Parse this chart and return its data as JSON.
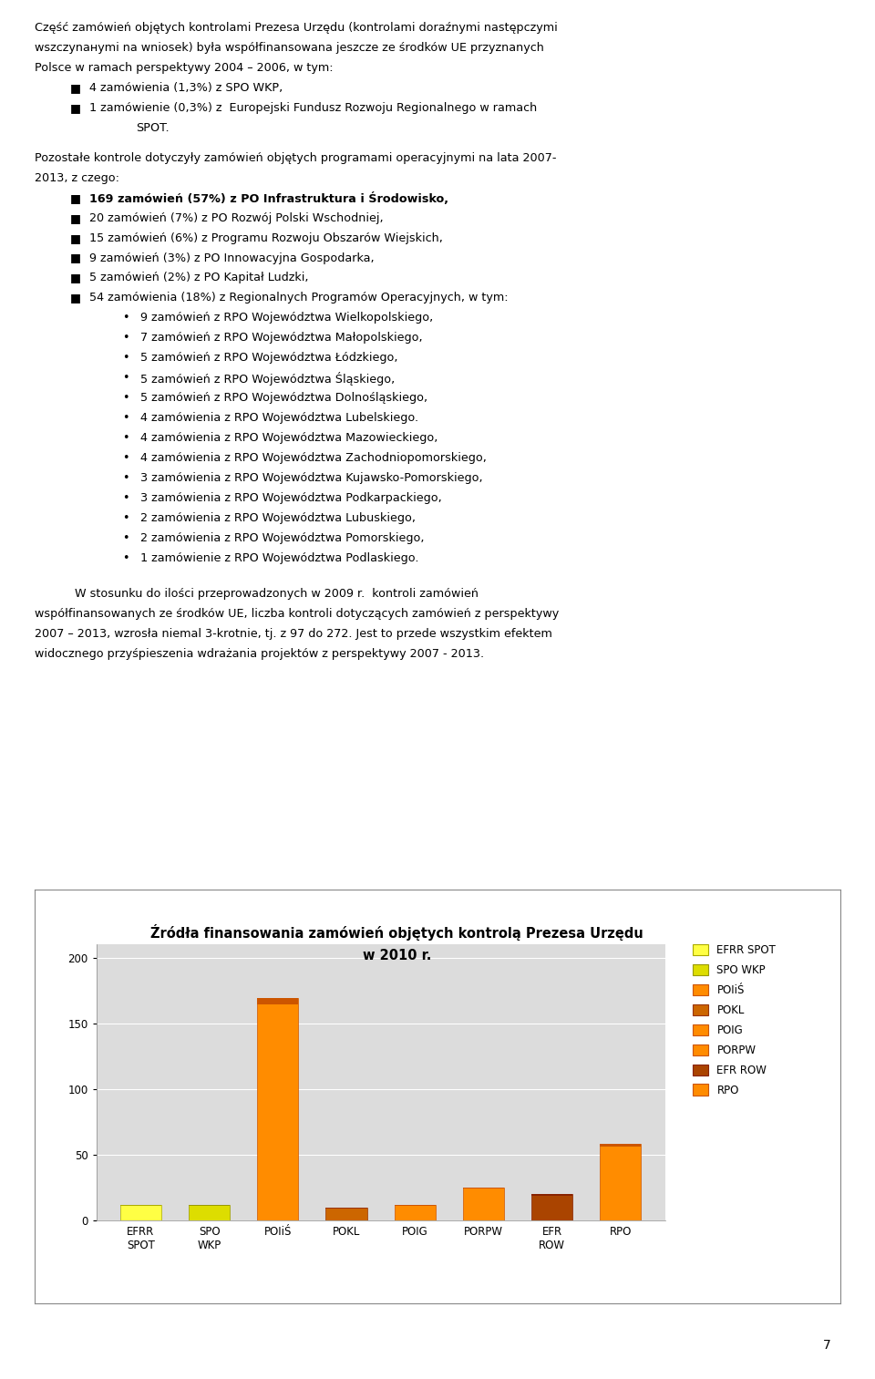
{
  "title_line1": "Źródła finansowania zamówień objętych kontrolą Prezesa Urzędu",
  "title_line2": "w 2010 r.",
  "categories": [
    "EFRR\nSPOT",
    "SPO\nWKP",
    "POIiŚ",
    "POKL",
    "POIG",
    "PORPW",
    "EFR\nROW",
    "RPO"
  ],
  "values": [
    12,
    12,
    169,
    10,
    12,
    25,
    20,
    58
  ],
  "bar_colors": [
    "#FFFF44",
    "#DDDD00",
    "#FF8C00",
    "#CC6600",
    "#FF8C00",
    "#FF8C00",
    "#AA4400",
    "#FF8C00"
  ],
  "bar_top_colors": [
    "#AAAA00",
    "#999900",
    "#CC5500",
    "#993300",
    "#CC5500",
    "#CC5500",
    "#882200",
    "#CC5500"
  ],
  "legend_labels": [
    "EFRR SPOT",
    "SPO WKP",
    "POIiŚ",
    "POKL",
    "POIG",
    "PORPW",
    "EFR ROW",
    "RPO"
  ],
  "legend_colors": [
    "#FFFF44",
    "#DDDD00",
    "#FF8C00",
    "#CC6600",
    "#FF8C00",
    "#FF8C00",
    "#AA4400",
    "#FF8C00"
  ],
  "legend_edge_colors": [
    "#AAAA00",
    "#999900",
    "#CC5500",
    "#993300",
    "#CC5500",
    "#CC5500",
    "#882200",
    "#CC5500"
  ],
  "ylim": [
    0,
    210
  ],
  "yticks": [
    0,
    50,
    100,
    150,
    200
  ],
  "chart_bg": "#DCDCDC",
  "chart_border": "#999999",
  "page_bg": "#FFFFFF",
  "bar_width": 0.6,
  "page_number": "7"
}
